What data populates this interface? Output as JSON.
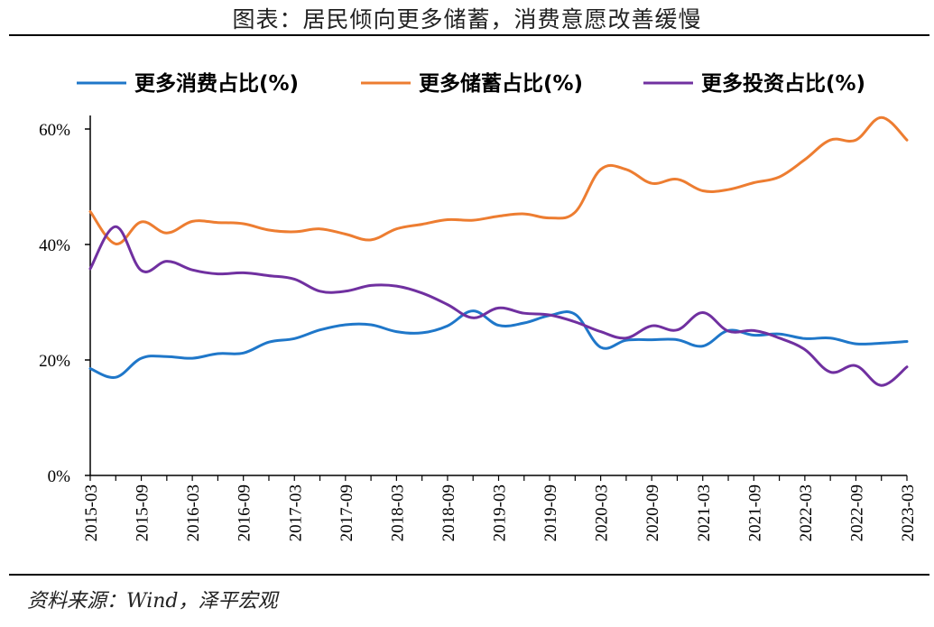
{
  "title": "图表：居民倾向更多储蓄，消费意愿改善缓慢",
  "source": "资料来源：Wind，泽平宏观",
  "chart_data": {
    "type": "line",
    "x": [
      "2015-03",
      "2015-06",
      "2015-09",
      "2015-12",
      "2016-03",
      "2016-06",
      "2016-09",
      "2016-12",
      "2017-03",
      "2017-06",
      "2017-09",
      "2017-12",
      "2018-03",
      "2018-06",
      "2018-09",
      "2018-12",
      "2019-03",
      "2019-06",
      "2019-09",
      "2019-12",
      "2020-03",
      "2020-06",
      "2020-09",
      "2020-12",
      "2021-03",
      "2021-06",
      "2021-09",
      "2021-12",
      "2022-03",
      "2022-06",
      "2022-09",
      "2022-12",
      "2023-03"
    ],
    "tick_labels": [
      "2015-03",
      "2015-09",
      "2016-03",
      "2016-09",
      "2017-03",
      "2017-09",
      "2018-03",
      "2018-09",
      "2019-03",
      "2019-09",
      "2020-03",
      "2020-09",
      "2021-03",
      "2021-09",
      "2022-03",
      "2022-09",
      "2023-03"
    ],
    "y_ticks": [
      "0%",
      "20%",
      "40%",
      "60%"
    ],
    "ylim": [
      0,
      60
    ],
    "series": [
      {
        "name": "更多消费占比(%)",
        "color": "#1f77c9",
        "values": [
          18.5,
          17.0,
          20.3,
          20.6,
          20.3,
          21.1,
          21.2,
          23.1,
          23.7,
          25.2,
          26.1,
          26.1,
          24.9,
          24.7,
          25.9,
          28.5,
          26.0,
          26.4,
          27.7,
          27.9,
          22.2,
          23.4,
          23.5,
          23.5,
          22.4,
          25.1,
          24.3,
          24.5,
          23.7,
          23.8,
          22.8,
          22.9,
          23.2
        ]
      },
      {
        "name": "更多储蓄占比(%)",
        "color": "#ed7d31",
        "values": [
          45.7,
          40.1,
          43.9,
          42.0,
          44.0,
          43.8,
          43.6,
          42.5,
          42.2,
          42.7,
          41.8,
          40.8,
          42.7,
          43.5,
          44.3,
          44.2,
          44.9,
          45.3,
          44.6,
          45.6,
          53.0,
          53.0,
          50.6,
          51.3,
          49.3,
          49.5,
          50.7,
          51.7,
          54.7,
          58.1,
          58.1,
          62.0,
          58.1
        ]
      },
      {
        "name": "更多投资占比(%)",
        "color": "#7030a0",
        "values": [
          35.8,
          43.1,
          35.5,
          37.1,
          35.6,
          34.9,
          35.1,
          34.6,
          34.0,
          31.9,
          31.9,
          32.9,
          32.8,
          31.6,
          29.6,
          27.3,
          29.0,
          28.1,
          27.8,
          26.6,
          24.9,
          23.8,
          25.9,
          25.2,
          28.2,
          25.0,
          25.1,
          23.8,
          21.8,
          17.9,
          19.0,
          15.6,
          18.8
        ]
      }
    ]
  }
}
